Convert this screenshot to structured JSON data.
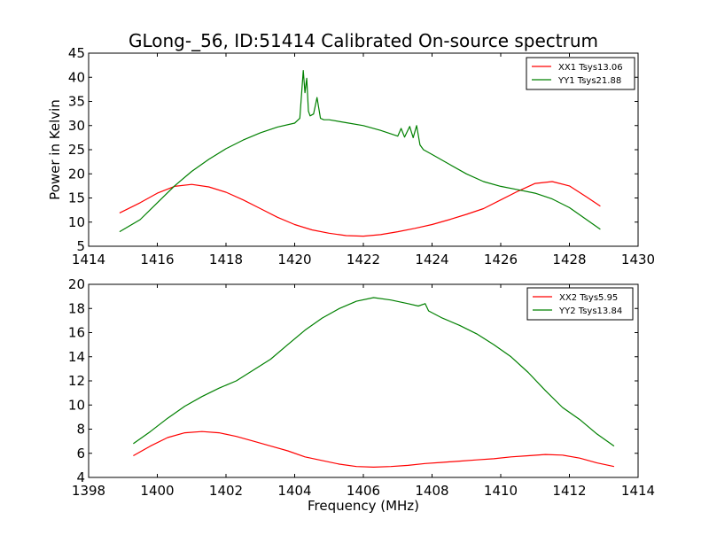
{
  "title": "GLong-_56, ID:51414 Calibrated On-source spectrum",
  "chart_data": [
    {
      "type": "line",
      "ylabel": "Power in Kelvin",
      "xlabel": "",
      "xlim": [
        1414,
        1430
      ],
      "ylim": [
        5,
        45
      ],
      "xticks": [
        "1414",
        "1416",
        "1418",
        "1420",
        "1422",
        "1424",
        "1426",
        "1428",
        "1430"
      ],
      "yticks": [
        "5",
        "10",
        "15",
        "20",
        "25",
        "30",
        "35",
        "40",
        "45"
      ],
      "legend_position": "top-right",
      "series": [
        {
          "name": "XX1 Tsys13.06",
          "color": "#ff0000",
          "x": [
            1414.9,
            1415.5,
            1416.0,
            1416.5,
            1417.0,
            1417.5,
            1418.0,
            1418.5,
            1419.0,
            1419.5,
            1420.0,
            1420.5,
            1421.0,
            1421.5,
            1422.0,
            1422.5,
            1423.0,
            1423.5,
            1424.0,
            1424.5,
            1425.0,
            1425.5,
            1426.0,
            1426.5,
            1427.0,
            1427.5,
            1428.0,
            1428.5,
            1428.9
          ],
          "y": [
            11.9,
            14.0,
            16.0,
            17.4,
            17.8,
            17.3,
            16.2,
            14.6,
            12.8,
            11.0,
            9.5,
            8.4,
            7.7,
            7.2,
            7.1,
            7.4,
            8.0,
            8.7,
            9.5,
            10.5,
            11.6,
            12.8,
            14.6,
            16.4,
            18.0,
            18.4,
            17.5,
            15.2,
            13.3
          ]
        },
        {
          "name": "YY1 Tsys21.88",
          "color": "#008000",
          "x": [
            1414.9,
            1415.5,
            1416.0,
            1416.5,
            1417.0,
            1417.5,
            1418.0,
            1418.5,
            1419.0,
            1419.5,
            1420.0,
            1420.15,
            1420.25,
            1420.3,
            1420.35,
            1420.4,
            1420.45,
            1420.55,
            1420.65,
            1420.75,
            1420.85,
            1421.0,
            1421.5,
            1422.0,
            1422.5,
            1423.0,
            1423.1,
            1423.2,
            1423.35,
            1423.45,
            1423.55,
            1423.65,
            1423.75,
            1424.0,
            1424.5,
            1425.0,
            1425.5,
            1426.0,
            1426.5,
            1427.0,
            1427.5,
            1428.0,
            1428.5,
            1428.9
          ],
          "y": [
            8.0,
            10.5,
            14.0,
            17.5,
            20.5,
            23.0,
            25.2,
            27.0,
            28.5,
            29.7,
            30.5,
            31.5,
            41.4,
            36.8,
            39.8,
            33.0,
            32.0,
            32.4,
            35.8,
            31.5,
            31.2,
            31.2,
            30.6,
            30.0,
            29.0,
            27.8,
            29.4,
            27.6,
            29.8,
            27.5,
            30.0,
            26.0,
            25.0,
            24.0,
            22.0,
            20.0,
            18.4,
            17.4,
            16.7,
            16.0,
            14.8,
            13.0,
            10.5,
            8.5
          ]
        }
      ]
    },
    {
      "type": "line",
      "ylabel": "",
      "xlabel": "Frequency (MHz)",
      "xlim": [
        1398,
        1414
      ],
      "ylim": [
        4,
        20
      ],
      "xticks": [
        "1398",
        "1400",
        "1402",
        "1404",
        "1406",
        "1408",
        "1410",
        "1412",
        "1414"
      ],
      "yticks": [
        "4",
        "6",
        "8",
        "10",
        "12",
        "14",
        "16",
        "18",
        "20"
      ],
      "legend_position": "top-right",
      "series": [
        {
          "name": "XX2 Tsys5.95",
          "color": "#ff0000",
          "x": [
            1399.3,
            1399.8,
            1400.3,
            1400.8,
            1401.3,
            1401.8,
            1402.3,
            1402.8,
            1403.3,
            1403.8,
            1404.3,
            1404.8,
            1405.3,
            1405.8,
            1406.3,
            1406.8,
            1407.3,
            1407.8,
            1408.3,
            1408.8,
            1409.3,
            1409.8,
            1410.3,
            1410.8,
            1411.3,
            1411.8,
            1412.3,
            1412.8,
            1413.3
          ],
          "y": [
            5.8,
            6.6,
            7.3,
            7.7,
            7.8,
            7.7,
            7.4,
            7.0,
            6.6,
            6.2,
            5.7,
            5.4,
            5.1,
            4.9,
            4.85,
            4.9,
            5.0,
            5.15,
            5.25,
            5.35,
            5.45,
            5.55,
            5.7,
            5.8,
            5.9,
            5.85,
            5.6,
            5.2,
            4.9
          ]
        },
        {
          "name": "YY2 Tsys13.84",
          "color": "#008000",
          "x": [
            1399.3,
            1399.8,
            1400.3,
            1400.8,
            1401.3,
            1401.8,
            1402.3,
            1402.8,
            1403.3,
            1403.8,
            1404.3,
            1404.8,
            1405.3,
            1405.8,
            1406.3,
            1406.8,
            1407.3,
            1407.6,
            1407.8,
            1407.9,
            1408.3,
            1408.8,
            1409.3,
            1409.8,
            1410.3,
            1410.8,
            1411.3,
            1411.8,
            1412.3,
            1412.8,
            1413.3
          ],
          "y": [
            6.8,
            7.8,
            8.9,
            9.9,
            10.7,
            11.4,
            12.0,
            12.9,
            13.8,
            15.0,
            16.2,
            17.2,
            18.0,
            18.6,
            18.9,
            18.7,
            18.4,
            18.2,
            18.4,
            17.8,
            17.2,
            16.6,
            15.9,
            15.0,
            14.0,
            12.7,
            11.2,
            9.8,
            8.8,
            7.6,
            6.6
          ]
        }
      ]
    }
  ]
}
